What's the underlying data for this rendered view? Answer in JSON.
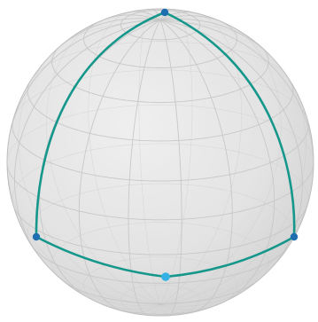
{
  "sphere": {
    "fill_color": "#e2e2e2",
    "grid_color": "#c6c6c6",
    "outline_color": "#bdbdbd",
    "grid": true
  },
  "triangle": {
    "edge_color": "#16978b",
    "vertex_color": "#1f6fb0",
    "highlight_vertex_color": "#35b1e6",
    "vertices": [
      {
        "name": "top"
      },
      {
        "name": "left"
      },
      {
        "name": "right"
      },
      {
        "name": "bottom"
      }
    ]
  }
}
